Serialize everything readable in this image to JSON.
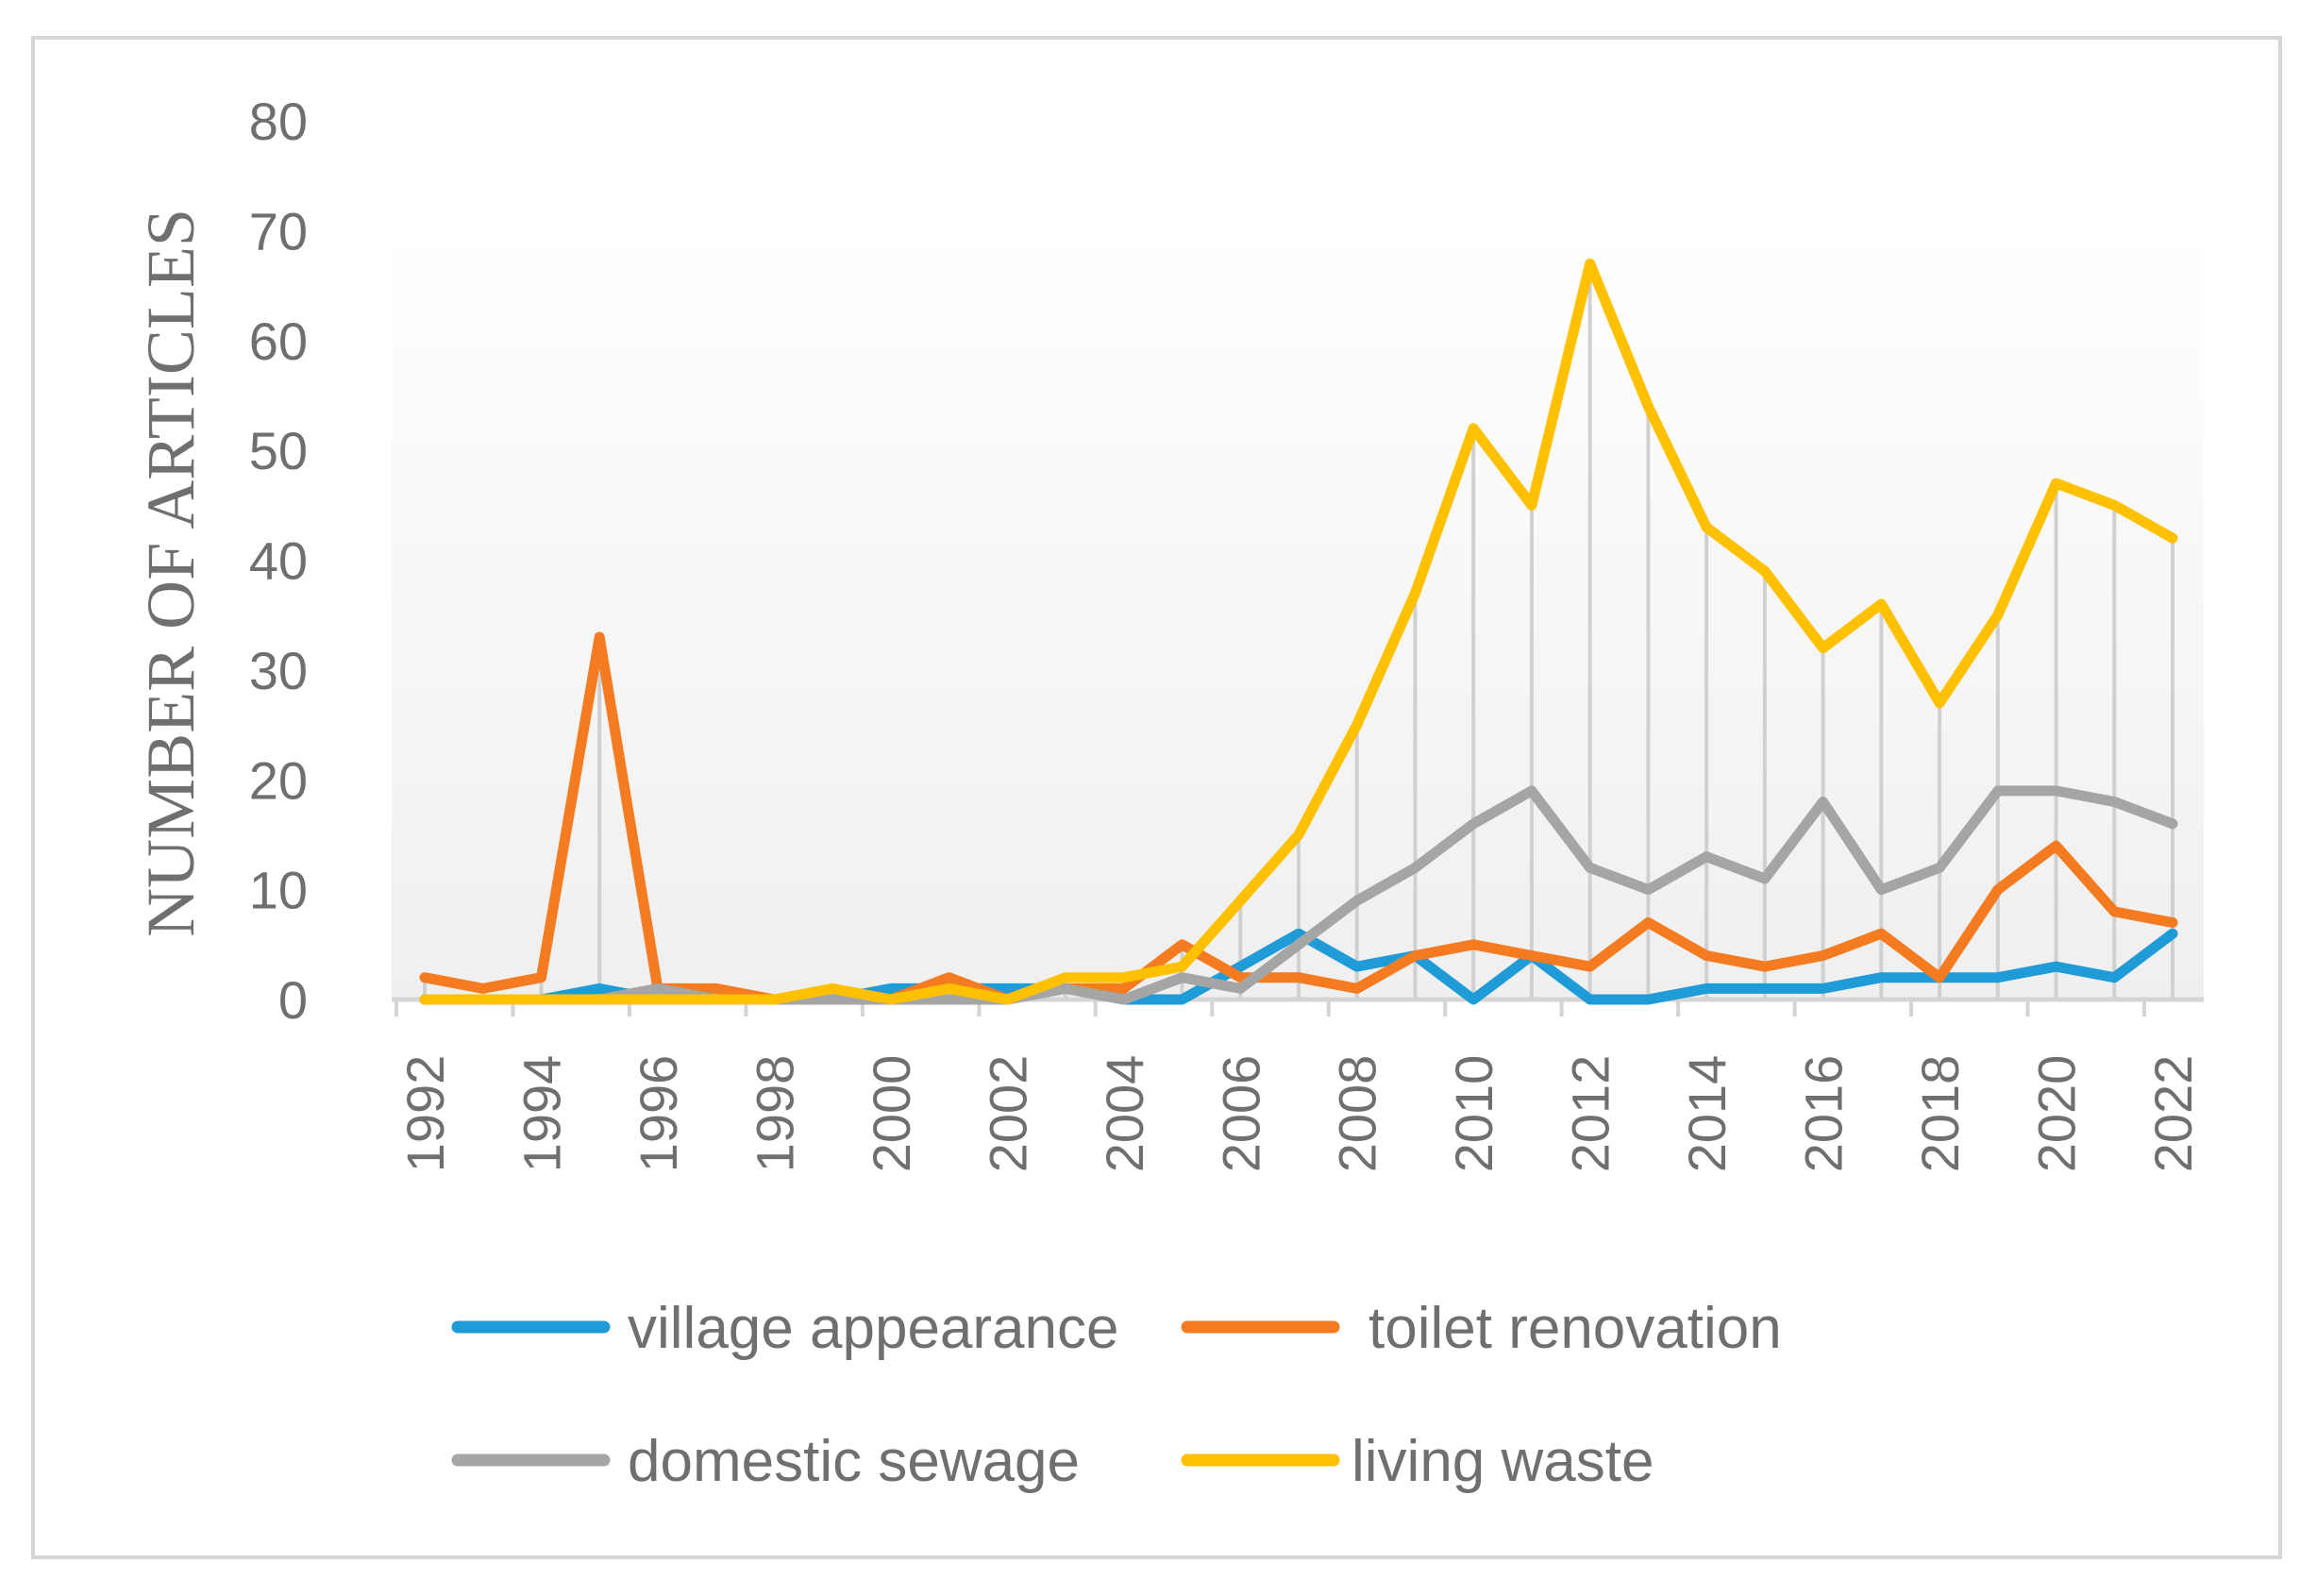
{
  "chart_data": {
    "type": "line",
    "title": "",
    "xlabel": "",
    "ylabel": "NUMBER OF ARTICLES",
    "ylim": [
      0,
      80
    ],
    "yticks": [
      "0",
      "10",
      "20",
      "30",
      "40",
      "50",
      "60",
      "70",
      "80"
    ],
    "x": [
      1992,
      1993,
      1994,
      1995,
      1996,
      1997,
      1998,
      1999,
      2000,
      2001,
      2002,
      2003,
      2004,
      2005,
      2006,
      2007,
      2008,
      2009,
      2010,
      2011,
      2012,
      2013,
      2014,
      2015,
      2016,
      2017,
      2018,
      2019,
      2020,
      2021,
      2022
    ],
    "xticks": [
      "1992",
      "1994",
      "1996",
      "1998",
      "2000",
      "2002",
      "2004",
      "2006",
      "2008",
      "2010",
      "2012",
      "2014",
      "2016",
      "2018",
      "2020",
      "2022"
    ],
    "legend_position": "bottom",
    "series": [
      {
        "name": "village appearance",
        "color": "#1f9bd8",
        "values": [
          0,
          0,
          0,
          1,
          0,
          0,
          0,
          0,
          1,
          1,
          1,
          1,
          0,
          0,
          3,
          6,
          3,
          4,
          0,
          4,
          0,
          0,
          1,
          1,
          1,
          2,
          2,
          2,
          3,
          2,
          6
        ]
      },
      {
        "name": "toilet renovation",
        "color": "#f47b20",
        "values": [
          2,
          1,
          2,
          33,
          1,
          1,
          0,
          0,
          0,
          2,
          0,
          1,
          1,
          5,
          2,
          2,
          1,
          4,
          5,
          4,
          3,
          7,
          4,
          3,
          4,
          6,
          2,
          10,
          14,
          8,
          7
        ]
      },
      {
        "name": "domestic sewage",
        "color": "#a5a5a5",
        "values": [
          0,
          0,
          0,
          0,
          1,
          0,
          0,
          0,
          0,
          0,
          0,
          1,
          0,
          2,
          1,
          5,
          9,
          12,
          16,
          19,
          12,
          10,
          13,
          11,
          18,
          10,
          12,
          19,
          19,
          18,
          16
        ]
      },
      {
        "name": "living waste",
        "color": "#ffc000",
        "values": [
          0,
          0,
          0,
          0,
          0,
          0,
          0,
          1,
          0,
          1,
          0,
          2,
          2,
          3,
          9,
          15,
          25,
          37,
          52,
          45,
          67,
          54,
          43,
          39,
          32,
          36,
          27,
          35,
          47,
          45,
          42
        ]
      }
    ]
  }
}
